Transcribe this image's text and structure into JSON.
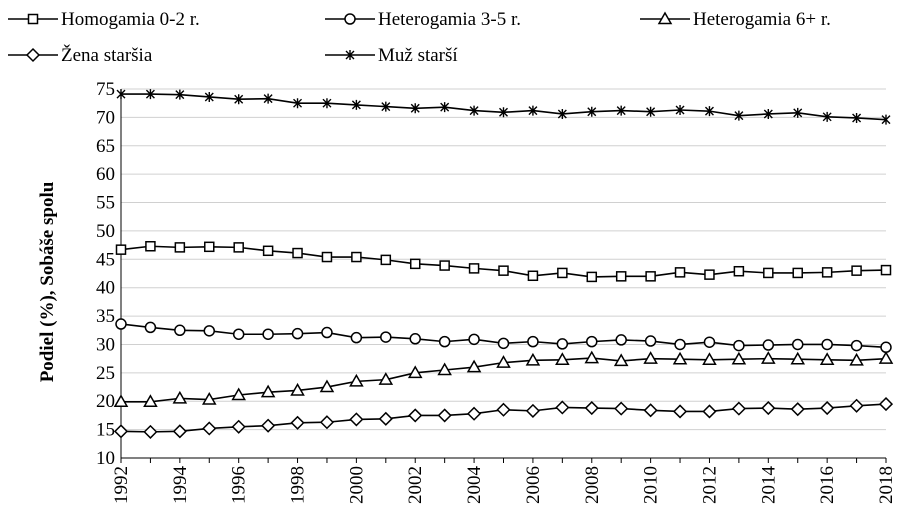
{
  "chart_data": {
    "type": "line",
    "title": "",
    "xlabel": "",
    "ylabel": "Podiel (%), Sobáše spolu",
    "ylim": [
      10,
      75
    ],
    "y_ticks": [
      10,
      15,
      20,
      25,
      30,
      35,
      40,
      45,
      50,
      55,
      60,
      65,
      70,
      75
    ],
    "x": [
      1992,
      1993,
      1994,
      1995,
      1996,
      1997,
      1998,
      1999,
      2000,
      2001,
      2002,
      2003,
      2004,
      2005,
      2006,
      2007,
      2008,
      2009,
      2010,
      2011,
      2012,
      2013,
      2014,
      2015,
      2016,
      2017,
      2018
    ],
    "x_tick_labels": [
      "1992",
      "1994",
      "1996",
      "1998",
      "2000",
      "2002",
      "2004",
      "2006",
      "2008",
      "2010",
      "2012",
      "2014",
      "2016",
      "2018"
    ],
    "grid": "horizontal",
    "legend_position": "top",
    "series": [
      {
        "name": "Homogamia 0-2 r.",
        "marker": "square",
        "values": [
          46.7,
          47.3,
          47.1,
          47.2,
          47.1,
          46.5,
          46.1,
          45.4,
          45.4,
          44.9,
          44.2,
          43.9,
          43.4,
          43.0,
          42.1,
          42.6,
          41.9,
          42.0,
          42.0,
          42.7,
          42.3,
          42.9,
          42.6,
          42.6,
          42.7,
          43.0,
          43.1
        ]
      },
      {
        "name": "Heterogamia 3-5 r.",
        "marker": "circle",
        "values": [
          33.6,
          33.0,
          32.5,
          32.4,
          31.8,
          31.8,
          31.9,
          32.1,
          31.2,
          31.3,
          31.0,
          30.5,
          30.9,
          30.2,
          30.5,
          30.1,
          30.5,
          30.8,
          30.6,
          30.0,
          30.4,
          29.8,
          29.9,
          30.0,
          30.0,
          29.8,
          29.5
        ]
      },
      {
        "name": "Heterogamia 6+ r.",
        "marker": "triangle",
        "values": [
          19.9,
          19.9,
          20.5,
          20.3,
          21.1,
          21.6,
          21.9,
          22.5,
          23.5,
          23.8,
          25.0,
          25.5,
          26.0,
          26.8,
          27.2,
          27.3,
          27.6,
          27.1,
          27.5,
          27.4,
          27.3,
          27.4,
          27.5,
          27.4,
          27.3,
          27.2,
          27.5
        ]
      },
      {
        "name": "Žena staršia",
        "marker": "diamond",
        "values": [
          14.7,
          14.6,
          14.7,
          15.2,
          15.5,
          15.7,
          16.2,
          16.3,
          16.8,
          16.9,
          17.5,
          17.5,
          17.8,
          18.5,
          18.3,
          18.9,
          18.8,
          18.7,
          18.4,
          18.2,
          18.2,
          18.7,
          18.8,
          18.6,
          18.8,
          19.2,
          19.5
        ]
      },
      {
        "name": "Muž starší",
        "marker": "star",
        "values": [
          74.1,
          74.1,
          74.0,
          73.6,
          73.2,
          73.3,
          72.5,
          72.5,
          72.2,
          71.9,
          71.6,
          71.8,
          71.2,
          70.9,
          71.2,
          70.6,
          71.0,
          71.2,
          71.0,
          71.3,
          71.1,
          70.3,
          70.6,
          70.8,
          70.1,
          69.9,
          69.6
        ]
      }
    ]
  }
}
